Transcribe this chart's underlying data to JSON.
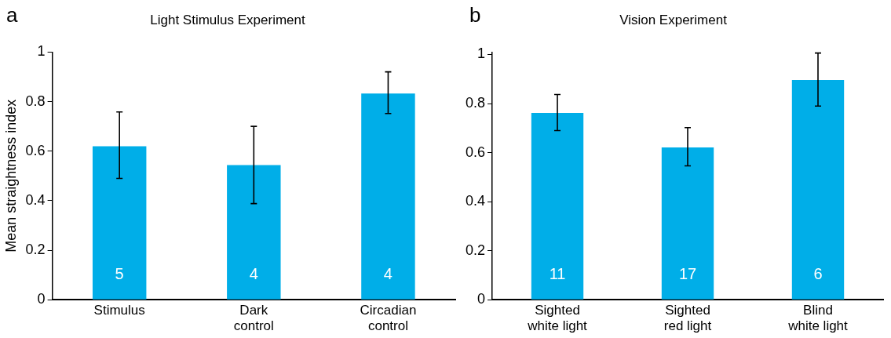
{
  "chart_data": [
    {
      "type": "bar",
      "title": "Light Stimulus Experiment",
      "ylabel": "Mean straightness index",
      "categories": [
        "Stimulus",
        "Dark\ncontrol",
        "Circadian\ncontrol"
      ],
      "series": [
        {
          "color": "#00aee8",
          "values": [
            0.62,
            0.544,
            0.833
          ],
          "errors": [
            [
              0.49,
              0.758
            ],
            [
              0.388,
              0.7
            ],
            [
              0.752,
              0.92
            ]
          ]
        }
      ],
      "ylim": [
        0,
        1
      ],
      "yticks": [
        0,
        0.2,
        0.4,
        0.6,
        0.8,
        1
      ],
      "annotations": [
        "a",
        "5",
        "4",
        "4"
      ]
    },
    {
      "type": "bar",
      "title": "Vision Experiment",
      "categories": [
        "Sighted\nwhite light",
        "Sighted\nred light",
        "Blind\nwhite light"
      ],
      "series": [
        {
          "color": "#00aee8",
          "values": [
            0.762,
            0.621,
            0.896
          ],
          "errors": [
            [
              0.69,
              0.837
            ],
            [
              0.546,
              0.702
            ],
            [
              0.79,
              1.006
            ]
          ]
        }
      ],
      "ylim": [
        0,
        1.01
      ],
      "yticks": [
        0,
        0.2,
        0.4,
        0.6,
        0.8,
        1
      ],
      "annotations": [
        "b",
        "11",
        "17",
        "6"
      ]
    }
  ]
}
